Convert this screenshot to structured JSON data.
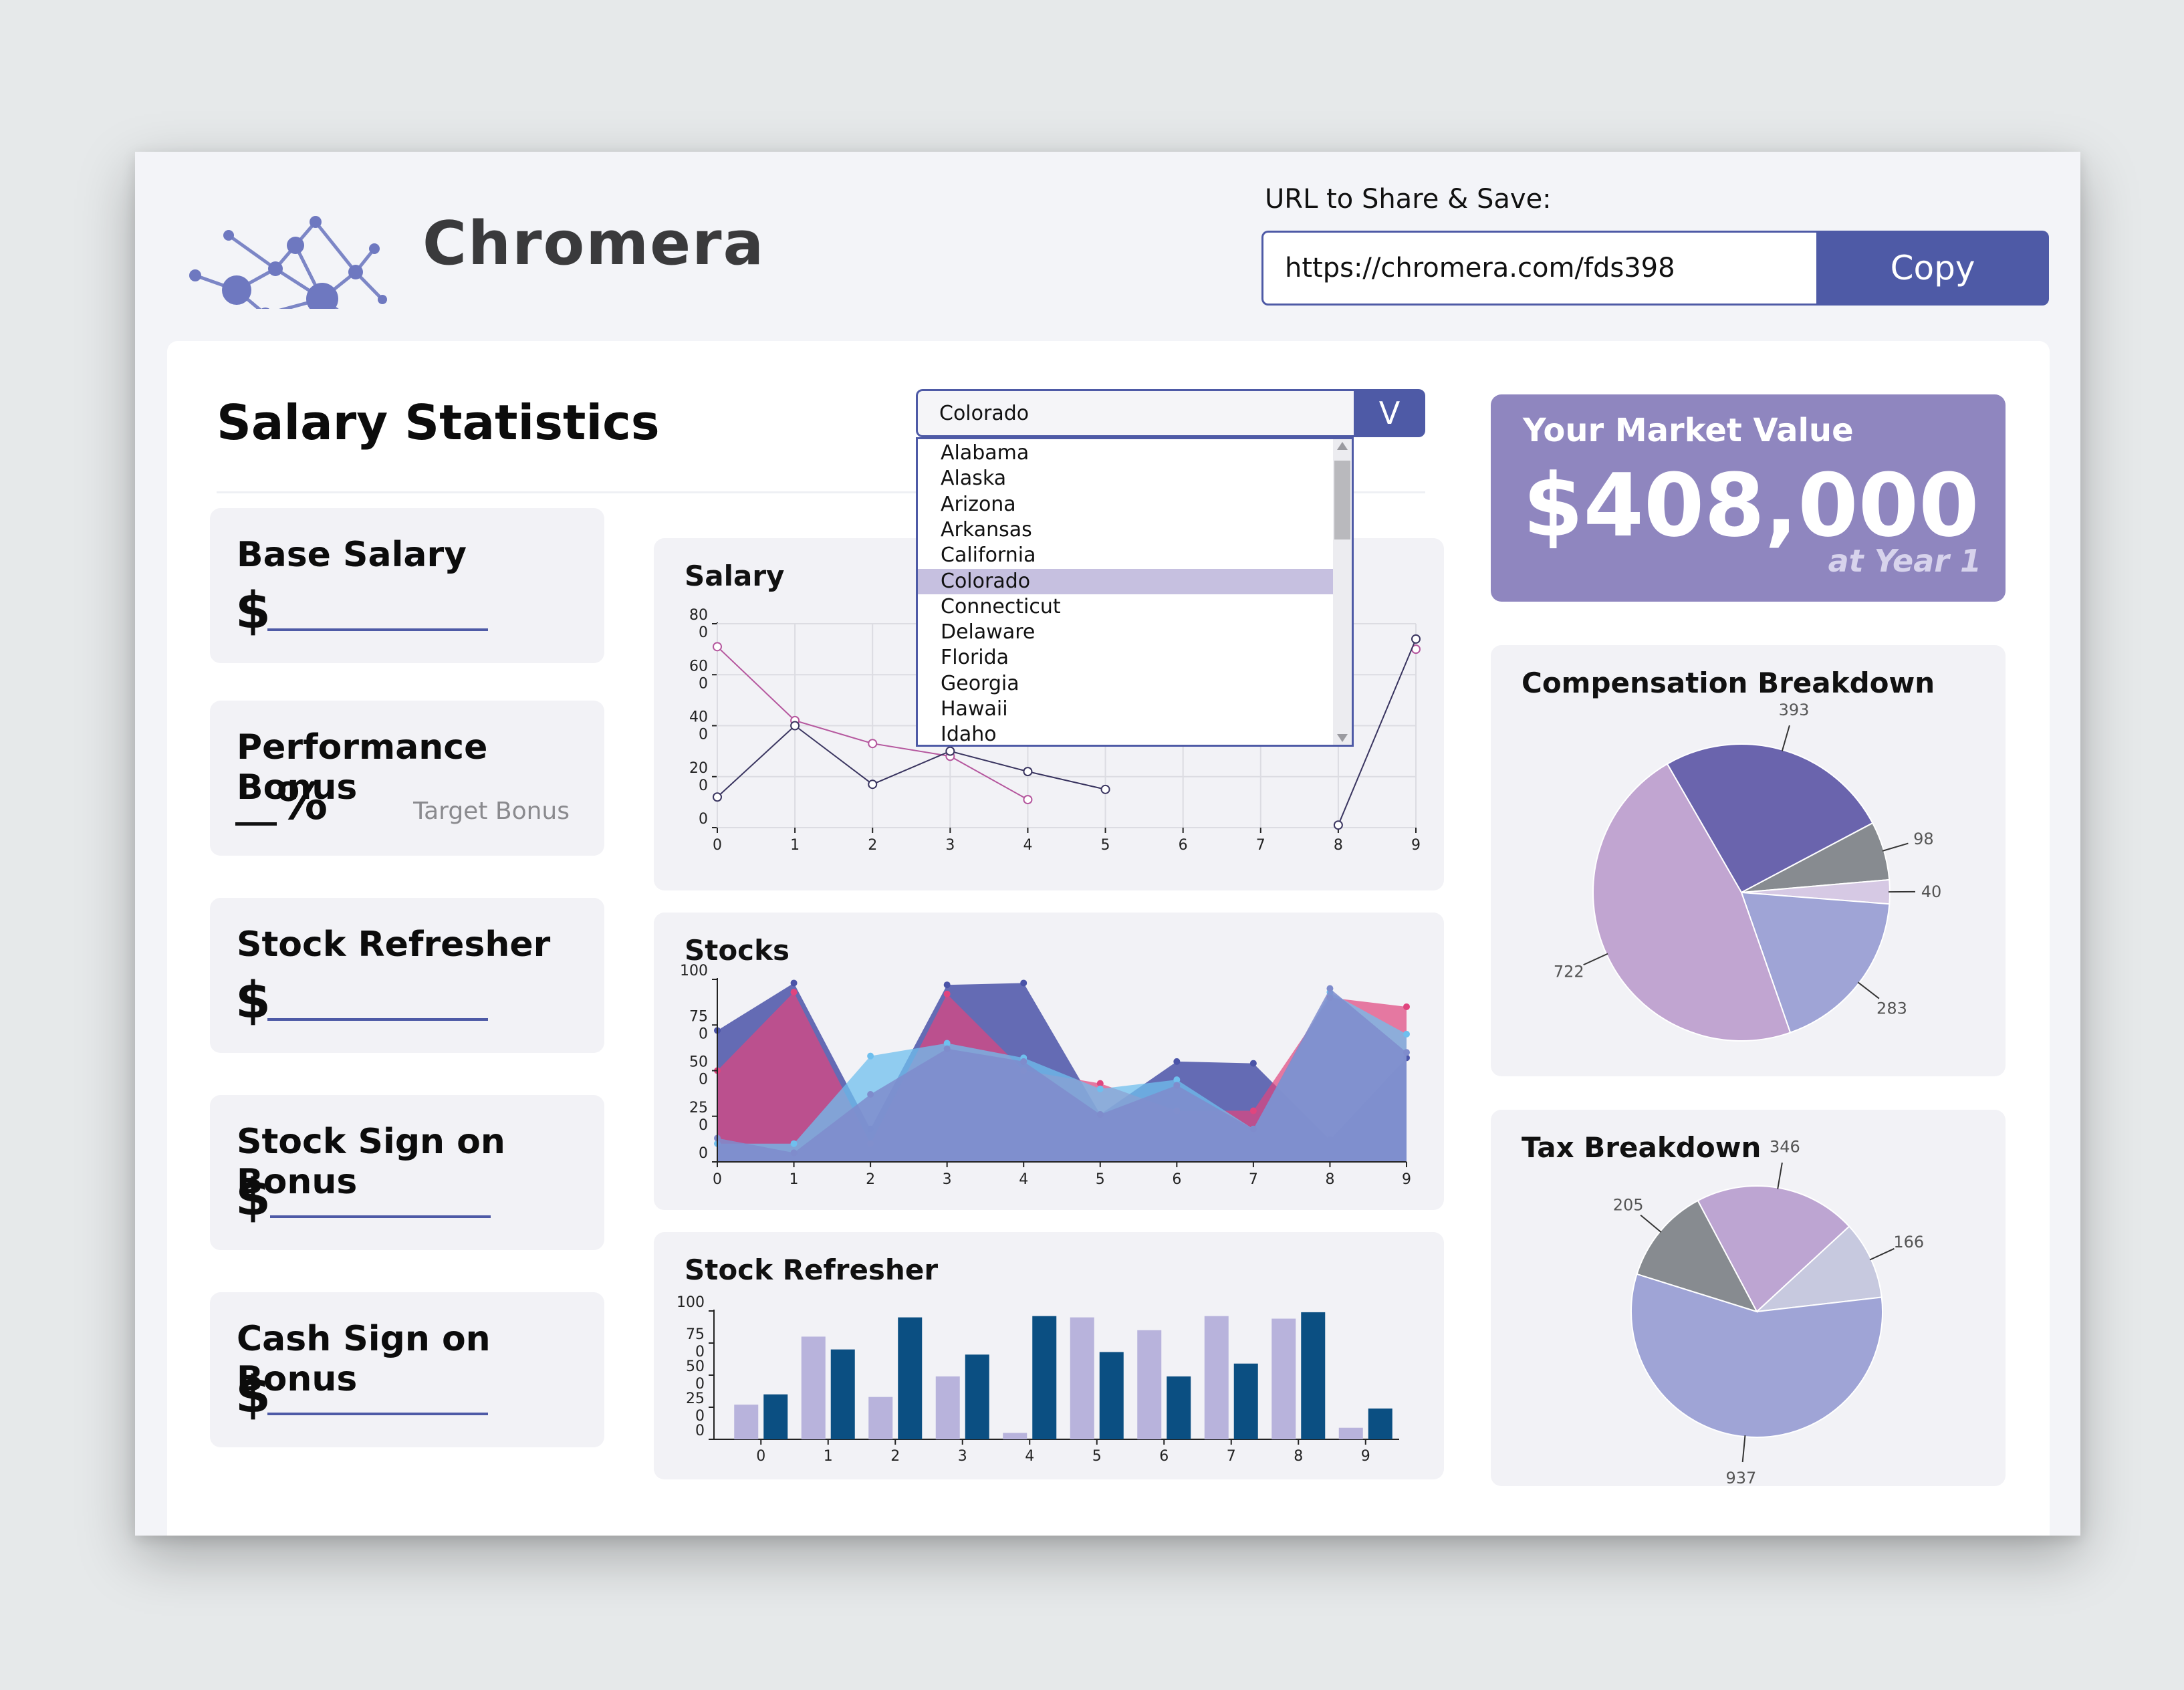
{
  "app": {
    "brand": "Chromera",
    "share_label": "URL to Share & Save:",
    "share_url": "https://chromera.com/fds398",
    "copy_label": "Copy"
  },
  "page": {
    "title": "Salary Statistics"
  },
  "state_select": {
    "selected": "Colorado",
    "toggle_label": "V",
    "options": [
      "Alabama",
      "Alaska",
      "Arizona",
      "Arkansas",
      "California",
      "Colorado",
      "Connecticut",
      "Delaware",
      "Florida",
      "Georgia",
      "Hawaii",
      "Idaho"
    ]
  },
  "inputs": {
    "base_salary": {
      "label": "Base Salary",
      "prefix": "$"
    },
    "performance_bonus": {
      "label": "Performance Bonus",
      "suffix": "%",
      "hint": "Target Bonus"
    },
    "stock_refresher": {
      "label": "Stock Refresher",
      "prefix": "$"
    },
    "stock_sign_on": {
      "label": "Stock Sign on Bonus",
      "prefix": "$"
    },
    "cash_sign_on": {
      "label": "Cash Sign on Bonus",
      "prefix": "$"
    }
  },
  "market_value": {
    "label": "Your Market Value",
    "value": "$408,000",
    "note": "at Year 1"
  },
  "colors": {
    "accent": "#4e5aa6",
    "market_card": "#8f86bf",
    "line_magenta": "#b5579e",
    "line_dark": "#3a3560",
    "stocks_blue": "#4b54a8",
    "stocks_pink": "#e0457e",
    "stocks_sky": "#6fbfee",
    "stocks_slate": "#7f8ccc",
    "bar_light": "#b8b3dc",
    "bar_dark": "#0b4f82"
  },
  "chart_data": [
    {
      "name": "Salary",
      "title": "Salary",
      "type": "line",
      "x": [
        0,
        1,
        2,
        3,
        4,
        5,
        6,
        7,
        8,
        9
      ],
      "y_ticks": [
        [
          "0",
          ""
        ],
        [
          "20",
          "0"
        ],
        [
          "40",
          "0"
        ],
        [
          "60",
          "0"
        ],
        [
          "80",
          "0"
        ]
      ],
      "ylim": [
        0,
        80
      ],
      "series": [
        {
          "values": [
            71,
            42,
            33,
            28,
            11,
            null,
            null,
            null,
            null,
            70
          ]
        },
        {
          "values": [
            12,
            40,
            17,
            30,
            22,
            15,
            null,
            null,
            1,
            74
          ]
        }
      ]
    },
    {
      "name": "Stocks",
      "title": "Stocks",
      "type": "area",
      "x": [
        0,
        1,
        2,
        3,
        4,
        5,
        6,
        7,
        8,
        9
      ],
      "y_ticks": [
        [
          "0",
          ""
        ],
        [
          "25",
          "0"
        ],
        [
          "50",
          "0"
        ],
        [
          "75",
          "0"
        ],
        [
          "100",
          ""
        ]
      ],
      "ylim": [
        0,
        100
      ],
      "series": [
        {
          "values": [
            72,
            98,
            18,
            97,
            98,
            26,
            55,
            54,
            12,
            57
          ]
        },
        {
          "values": [
            50,
            93,
            10,
            92,
            50,
            43,
            28,
            28,
            90,
            85
          ]
        },
        {
          "values": [
            10,
            10,
            58,
            65,
            57,
            40,
            45,
            18,
            93,
            70
          ]
        },
        {
          "values": [
            13,
            5,
            37,
            62,
            55,
            26,
            42,
            18,
            95,
            60
          ]
        }
      ]
    },
    {
      "name": "Stock Refresher",
      "title": "Stock Refresher",
      "type": "bar",
      "categories": [
        "0",
        "1",
        "2",
        "3",
        "4",
        "5",
        "6",
        "7",
        "8",
        "9"
      ],
      "y_ticks": [
        [
          "0",
          ""
        ],
        [
          "25",
          "0"
        ],
        [
          "50",
          "0"
        ],
        [
          "75",
          "0"
        ],
        [
          "100",
          ""
        ]
      ],
      "ylim": [
        0,
        100
      ],
      "series": [
        {
          "values": [
            27,
            80,
            33,
            49,
            5,
            95,
            85,
            96,
            94,
            9
          ]
        },
        {
          "values": [
            35,
            70,
            95,
            66,
            96,
            68,
            49,
            59,
            99,
            24
          ]
        }
      ]
    },
    {
      "name": "Compensation Breakdown",
      "title": "Compensation Breakdown",
      "type": "pie",
      "slices": [
        {
          "label": "393",
          "value": 393,
          "color": "#6a64ad"
        },
        {
          "label": "98",
          "value": 98,
          "color": "#878b90"
        },
        {
          "label": "40",
          "value": 40,
          "color": "#d6c9e4"
        },
        {
          "label": "283",
          "value": 283,
          "color": "#9fa4d6"
        },
        {
          "label": "722",
          "value": 722,
          "color": "#c1a5d1"
        }
      ]
    },
    {
      "name": "Tax Breakdown",
      "title": "Tax Breakdown",
      "type": "pie",
      "slices": [
        {
          "label": "346",
          "value": 346,
          "color": "#bda5d2"
        },
        {
          "label": "166",
          "value": 166,
          "color": "#c7c9df"
        },
        {
          "label": "937",
          "value": 937,
          "color": "#9fa4d6"
        },
        {
          "label": "205",
          "value": 205,
          "color": "#878b90"
        }
      ]
    }
  ]
}
